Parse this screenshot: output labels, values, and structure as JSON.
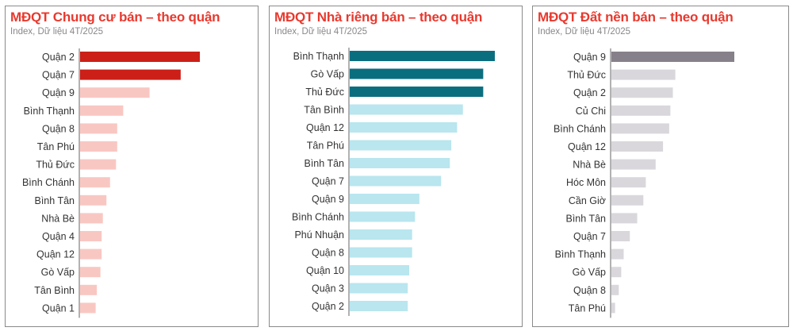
{
  "colors": {
    "title": "#e8392e",
    "panel_border": "#8a8a8a",
    "axis": "#666666"
  },
  "chart_data": [
    {
      "type": "bar",
      "orientation": "horizontal",
      "title": "MĐQT Chung cư bán – theo quận",
      "subtitle": "Index, Dữ liệu 4T/2025",
      "categories": [
        "Quận 2",
        "Quận 7",
        "Quận 9",
        "Bình Thạnh",
        "Quận 8",
        "Tân Phú",
        "Thủ Đức",
        "Bình Chánh",
        "Bình Tân",
        "Nhà Bè",
        "Quận 4",
        "Quận 12",
        "Gò Vấp",
        "Tân Bình",
        "Quận 1"
      ],
      "values": [
        100,
        84,
        58,
        36,
        31,
        31,
        30,
        25,
        22,
        19,
        18,
        18,
        17,
        14,
        13
      ],
      "colors": [
        "#cc1f17",
        "#cc1f17",
        "#f9c7c2",
        "#f9c7c2",
        "#f9c7c2",
        "#f9c7c2",
        "#f9c7c2",
        "#f9c7c2",
        "#f9c7c2",
        "#f9c7c2",
        "#f9c7c2",
        "#f9c7c2",
        "#f9c7c2",
        "#f9c7c2",
        "#f9c7c2"
      ],
      "xlim": [
        0,
        100
      ],
      "grid": false
    },
    {
      "type": "bar",
      "orientation": "horizontal",
      "title": "MĐQT Nhà riêng bán – theo quận",
      "subtitle": "Index, Dữ liệu 4T/2025",
      "categories": [
        "Bình Thạnh",
        "Gò Vấp",
        "Thủ Đức",
        "Tân Bình",
        "Quận 12",
        "Tân Phú",
        "Bình Tân",
        "Quận 7",
        "Quận 9",
        "Bình Chánh",
        "Phú Nhuận",
        "Quận 8",
        "Quận 10",
        "Quận 3",
        "Quận 2"
      ],
      "values": [
        100,
        92,
        92,
        78,
        74,
        70,
        69,
        63,
        48,
        45,
        43,
        43,
        41,
        40,
        40
      ],
      "colors": [
        "#0b6e7f",
        "#0b6e7f",
        "#0b6e7f",
        "#b9e6ef",
        "#b9e6ef",
        "#b9e6ef",
        "#b9e6ef",
        "#b9e6ef",
        "#b9e6ef",
        "#b9e6ef",
        "#b9e6ef",
        "#b9e6ef",
        "#b9e6ef",
        "#b9e6ef",
        "#b9e6ef"
      ],
      "xlim": [
        0,
        100
      ],
      "grid": false
    },
    {
      "type": "bar",
      "orientation": "horizontal",
      "title": "MĐQT Đất nền bán – theo quận",
      "subtitle": "Index, Dữ liệu 4T/2025",
      "categories": [
        "Quận 9",
        "Thủ Đức",
        "Quận 2",
        "Củ Chi",
        "Bình Chánh",
        "Quận 12",
        "Nhà Bè",
        "Hóc Môn",
        "Cần Giờ",
        "Bình Tân",
        "Quận 7",
        "Bình Thạnh",
        "Gò Vấp",
        "Quận 8",
        "Tân Phú"
      ],
      "values": [
        100,
        52,
        50,
        48,
        47,
        42,
        36,
        28,
        26,
        21,
        15,
        10,
        8,
        6,
        3
      ],
      "colors": [
        "#86808a",
        "#d9d7dc",
        "#d9d7dc",
        "#d9d7dc",
        "#d9d7dc",
        "#d9d7dc",
        "#d9d7dc",
        "#d9d7dc",
        "#d9d7dc",
        "#d9d7dc",
        "#d9d7dc",
        "#d9d7dc",
        "#d9d7dc",
        "#d9d7dc",
        "#d9d7dc"
      ],
      "xlim": [
        0,
        100
      ],
      "grid": false
    }
  ]
}
